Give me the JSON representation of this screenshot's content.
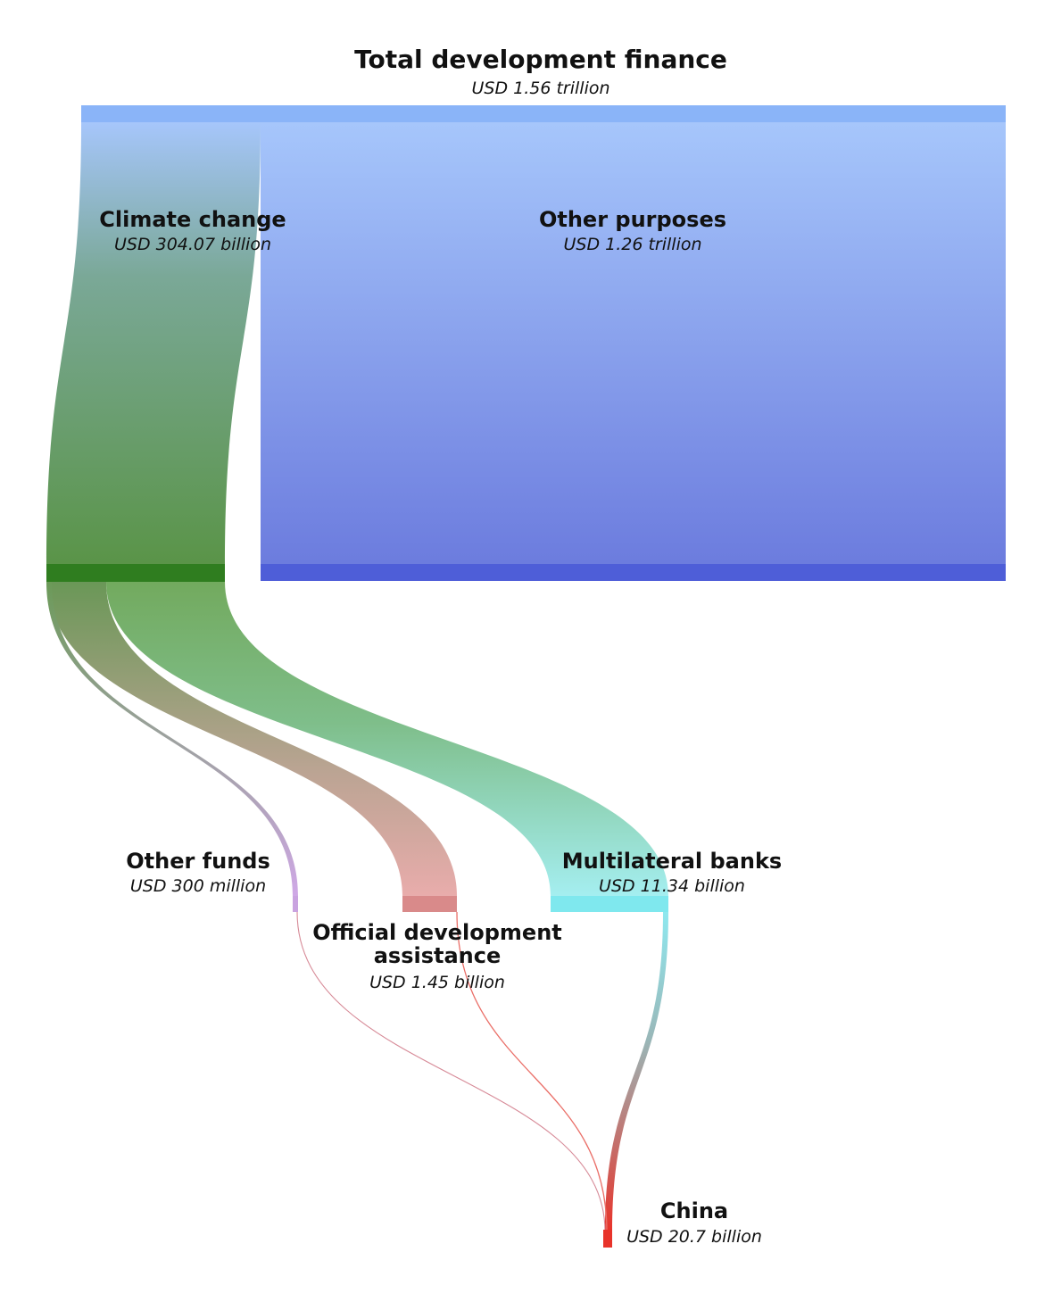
{
  "title": "Total development finance",
  "title_value": "USD 1.56 trillion",
  "nodes": {
    "climate": {
      "label": "Climate change",
      "value": "USD 304.07 billion",
      "color": "#2f7d1f"
    },
    "other_purposes": {
      "label": "Other purposes",
      "value": "USD 1.26 trillion",
      "color": "#4e5ed8"
    },
    "other_funds": {
      "label": "Other funds",
      "value": "USD 300 million",
      "color": "#c9a3e0"
    },
    "oda": {
      "label_line1": "Official development",
      "label_line2": "assistance",
      "value": "USD 1.45 billion",
      "color": "#d98a8a"
    },
    "mdb": {
      "label": "Multilateral banks",
      "value": "USD 11.34 billion",
      "color": "#7fe8ee"
    },
    "china": {
      "label": "China",
      "value": "USD 20.7 billion",
      "color": "#e8332a"
    }
  },
  "colors": {
    "total_bar": "#8ab4f8",
    "total_flow": "#a5c4fb",
    "climate_flow_end": "#5a9448",
    "other_flow_end": "#6e7ede"
  },
  "chart_data": {
    "type": "sankey",
    "unit": "USD",
    "flows": [
      {
        "from": "Total development finance",
        "to": "Climate change",
        "value_billion": 304.07
      },
      {
        "from": "Total development finance",
        "to": "Other purposes",
        "value_billion": 1260
      },
      {
        "from": "Climate change",
        "to": "Other funds",
        "value_billion": 0.3
      },
      {
        "from": "Climate change",
        "to": "Official development assistance",
        "value_billion": 1.45
      },
      {
        "from": "Climate change",
        "to": "Multilateral banks",
        "value_billion": 11.34
      },
      {
        "from": "Other funds",
        "to": "China",
        "value_billion": 0.3
      },
      {
        "from": "Official development assistance",
        "to": "China",
        "value_billion": 1.45
      },
      {
        "from": "Multilateral banks",
        "to": "China",
        "value_billion": 11.34
      }
    ]
  }
}
